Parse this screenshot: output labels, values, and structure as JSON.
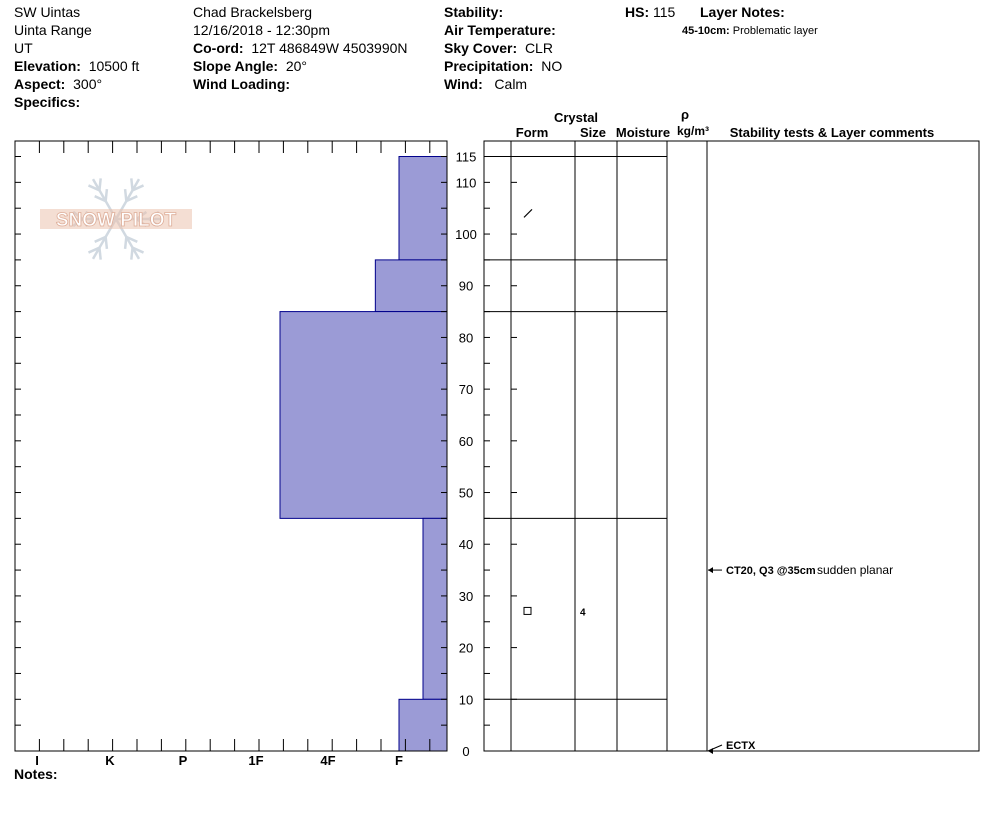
{
  "header": {
    "range_name": "SW Uintas",
    "sub_range": "Uinta Range",
    "state": "UT",
    "elevation_label": "Elevation:",
    "elevation": "10500 ft",
    "aspect_label": "Aspect:",
    "aspect": "300°",
    "specifics_label": "Specifics:",
    "observer": "Chad Brackelsberg",
    "datetime": "12/16/2018 - 12:30pm",
    "coord_label": "Co-ord:",
    "coord": "12T 486849W 4503990N",
    "slope_label": "Slope Angle:",
    "slope": "20°",
    "wind_loading_label": "Wind Loading:",
    "stability_label": "Stability:",
    "air_temp_label": "Air Temperature:",
    "sky_label": "Sky Cover:",
    "sky": "CLR",
    "precip_label": "Precipitation:",
    "precip": "NO",
    "wind_label": "Wind:",
    "wind": "Calm",
    "hs_label": "HS:",
    "hs": "115",
    "layer_notes_label": "Layer Notes:",
    "layer_note_range": "45-10cm:",
    "layer_note_text": "Problematic layer",
    "notes_label": "Notes:"
  },
  "logo_text": "SNOW PILOT",
  "colors": {
    "hardness_fill": "#9b9bd6",
    "hardness_stroke": "#00008b",
    "logo": "#e8b8a0"
  },
  "chart_data": {
    "type": "bar",
    "hardness_scale": [
      "I",
      "K",
      "P",
      "1F",
      "4F",
      "F"
    ],
    "y_ticks": [
      0,
      10,
      20,
      30,
      40,
      50,
      60,
      70,
      80,
      90,
      100,
      110,
      115
    ],
    "ylim": [
      0,
      115
    ],
    "layers": [
      {
        "top": 115,
        "bottom": 95,
        "hardness": "F"
      },
      {
        "top": 95,
        "bottom": 85,
        "hardness": "F+"
      },
      {
        "top": 85,
        "bottom": 45,
        "hardness": "1F-"
      },
      {
        "top": 45,
        "bottom": 10,
        "hardness": "F-"
      },
      {
        "top": 10,
        "bottom": 0,
        "hardness": "F"
      }
    ],
    "column_headers": {
      "crystal": "Crystal",
      "form": "Form",
      "size": "Size",
      "moisture": "Moisture",
      "rho": "ρ",
      "rho_units": "kg/m³",
      "stability": "Stability tests & Layer comments"
    },
    "crystal_entries": [
      {
        "depth": 104,
        "form": "new-snow",
        "size": ""
      },
      {
        "depth": 27,
        "form": "faceted",
        "size": "4"
      }
    ],
    "tests": [
      {
        "depth": 35,
        "code": "CT20, Q3 @35cm",
        "comment": "sudden planar"
      },
      {
        "depth": 0,
        "code": "ECTX",
        "comment": ""
      }
    ]
  }
}
